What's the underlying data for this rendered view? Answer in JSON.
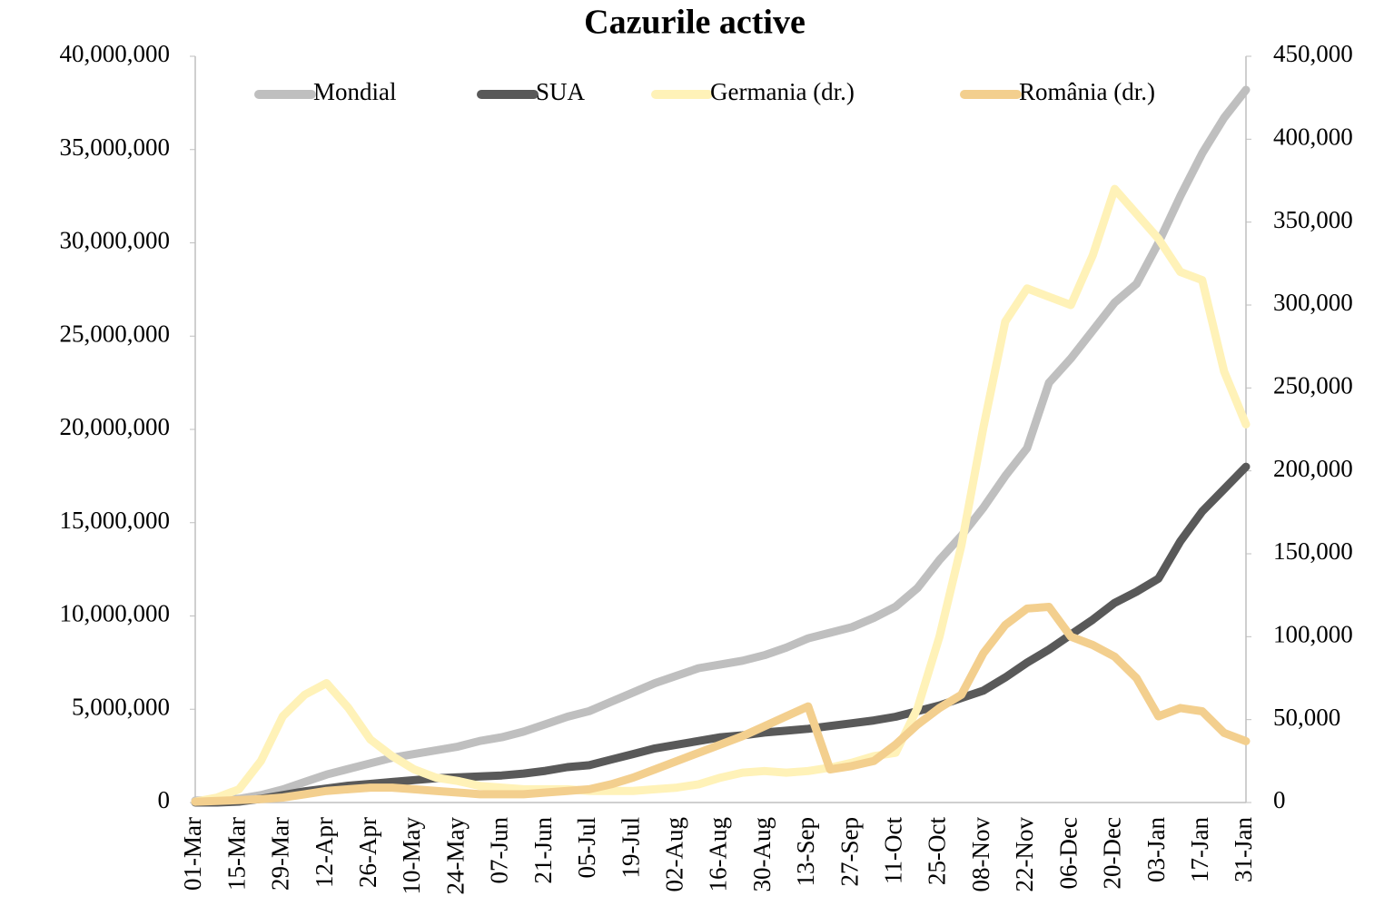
{
  "chart_data": {
    "type": "line",
    "title": "Cazurile active",
    "categories": [
      "01-Mar",
      null,
      "15-Mar",
      null,
      "29-Mar",
      null,
      "12-Apr",
      null,
      "26-Apr",
      null,
      "10-May",
      null,
      "24-May",
      null,
      "07-Jun",
      null,
      "21-Jun",
      null,
      "05-Jul",
      null,
      "19-Jul",
      null,
      "02-Aug",
      null,
      "16-Aug",
      null,
      "30-Aug",
      null,
      "13-Sep",
      null,
      "27-Sep",
      null,
      "11-Oct",
      null,
      "25-Oct",
      null,
      "08-Nov",
      null,
      "22-Nov",
      null,
      "06-Dec",
      null,
      "20-Dec",
      null,
      "03-Jan",
      null,
      "17-Jan",
      null,
      "31-Jan"
    ],
    "series": [
      {
        "name": "Mondial",
        "color": "#bfbfbf",
        "values": [
          100000,
          150000,
          200000,
          400000,
          700000,
          1100000,
          1500000,
          1800000,
          2100000,
          2400000,
          2600000,
          2800000,
          3000000,
          3300000,
          3500000,
          3800000,
          4200000,
          4600000,
          4900000,
          5400000,
          5900000,
          6400000,
          6800000,
          7200000,
          7400000,
          7600000,
          7900000,
          8300000,
          8800000,
          9100000,
          9400000,
          9900000,
          10500000,
          11500000,
          13000000,
          14300000,
          15800000,
          17500000,
          19000000,
          22500000,
          23800000,
          25300000,
          26800000,
          27800000,
          30000000,
          32500000,
          34800000,
          36700000,
          38200000
        ]
      },
      {
        "name": "SUA",
        "color": "#595959",
        "values": [
          0,
          0,
          50000,
          200000,
          400000,
          600000,
          750000,
          900000,
          1000000,
          1100000,
          1200000,
          1300000,
          1350000,
          1400000,
          1450000,
          1550000,
          1700000,
          1900000,
          2000000,
          2300000,
          2600000,
          2900000,
          3100000,
          3300000,
          3500000,
          3600000,
          3750000,
          3850000,
          3950000,
          4100000,
          4250000,
          4400000,
          4600000,
          4900000,
          5200000,
          5600000,
          6000000,
          6700000,
          7500000,
          8200000,
          9000000,
          9800000,
          10700000,
          11300000,
          12000000,
          14000000,
          15600000,
          16800000,
          18000000
        ]
      },
      {
        "name": "Germania (dr.)",
        "color": "#fff2b8",
        "axis": "y2",
        "values": [
          500,
          3000,
          8000,
          25000,
          52000,
          65000,
          72000,
          57000,
          38000,
          28000,
          20000,
          15000,
          13000,
          10000,
          9000,
          8000,
          8000,
          8000,
          7000,
          7000,
          7000,
          8000,
          9000,
          11000,
          15000,
          18000,
          19000,
          18000,
          19000,
          21000,
          24000,
          28000,
          30000,
          57000,
          100000,
          155000,
          226000,
          290000,
          310000,
          305000,
          300000,
          330000,
          370000,
          355000,
          340000,
          320000,
          315000,
          260000,
          228000
        ]
      },
      {
        "name": "România (dr.)",
        "color": "#f3cf8e",
        "axis": "y2",
        "values": [
          500,
          1000,
          1500,
          2000,
          3000,
          5000,
          7000,
          8000,
          9000,
          9000,
          8000,
          7000,
          6000,
          5000,
          5000,
          5000,
          6000,
          7000,
          8000,
          11000,
          15000,
          20000,
          25000,
          30000,
          35000,
          40000,
          46000,
          52000,
          58000,
          20000,
          22000,
          25000,
          35000,
          47000,
          57000,
          65000,
          90000,
          107000,
          117000,
          118000,
          100000,
          95000,
          88000,
          75000,
          52000,
          57000,
          55000,
          42000,
          37000
        ]
      }
    ],
    "ylim": [
      0,
      40000000
    ],
    "yticks": [
      0,
      {
        "value": 5000000,
        "label": "5,000,000"
      },
      {
        "value": 10000000,
        "label": "10,000,000"
      },
      {
        "value": 15000000,
        "label": "15,000,000"
      },
      {
        "value": 20000000,
        "label": "20,000,000"
      },
      {
        "value": 25000000,
        "label": "25,000,000"
      },
      {
        "value": 30000000,
        "label": "30,000,000"
      },
      {
        "value": 35000000,
        "label": "35,000,000"
      },
      {
        "value": 40000000,
        "label": "40,000,000"
      }
    ],
    "y2lim": [
      0,
      450000
    ],
    "y2ticks": [
      0,
      {
        "value": 50000,
        "label": "50,000"
      },
      {
        "value": 100000,
        "label": "100,000"
      },
      {
        "value": 150000,
        "label": "150,000"
      },
      {
        "value": 200000,
        "label": "200,000"
      },
      {
        "value": 250000,
        "label": "250,000"
      },
      {
        "value": 300000,
        "label": "300,000"
      },
      {
        "value": 350000,
        "label": "350,000"
      },
      {
        "value": 400000,
        "label": "400,000"
      },
      {
        "value": 450000,
        "label": "450,000"
      }
    ],
    "legend": "top"
  }
}
